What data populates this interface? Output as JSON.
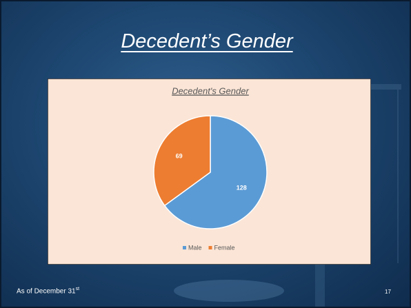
{
  "slide": {
    "title": "Decedent’s Gender",
    "footer": "As of December 31",
    "footer_suffix": "st",
    "page_number": "17"
  },
  "chart_data": {
    "type": "pie",
    "title": "Decedent's Gender",
    "categories": [
      "Male",
      "Female"
    ],
    "values": [
      128,
      69
    ],
    "colors": [
      "#5b9bd5",
      "#ed7d31"
    ],
    "legend": "bottom"
  }
}
